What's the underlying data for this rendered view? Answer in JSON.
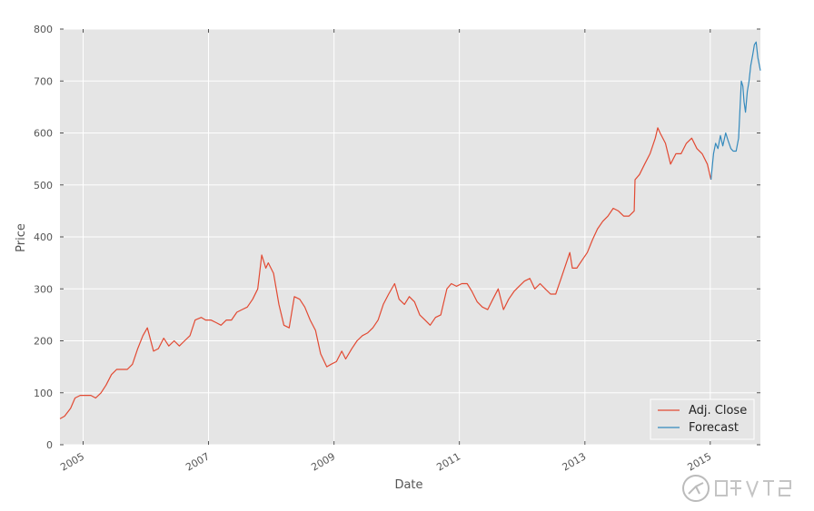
{
  "chart_data": {
    "type": "line",
    "title": "",
    "xlabel": "Date",
    "ylabel": "Price",
    "ylim": [
      0,
      800
    ],
    "xlim": [
      "2004-08-19",
      "2015-10-20"
    ],
    "yticks": [
      0,
      100,
      200,
      300,
      400,
      500,
      600,
      700,
      800
    ],
    "xticks": [
      "2005",
      "2007",
      "2009",
      "2011",
      "2013",
      "2015"
    ],
    "grid": true,
    "legend_position": "lower-right",
    "background_color": "#e5e5e5",
    "series": [
      {
        "name": "Adj. Close",
        "color": "#e24a33",
        "x": [
          "2004-08-19",
          "2004-09-15",
          "2004-10-20",
          "2004-11-15",
          "2004-12-15",
          "2005-01-15",
          "2005-02-15",
          "2005-03-15",
          "2005-04-15",
          "2005-05-15",
          "2005-06-15",
          "2005-07-15",
          "2005-08-15",
          "2005-09-15",
          "2005-10-15",
          "2005-11-15",
          "2005-12-15",
          "2006-01-10",
          "2006-02-15",
          "2006-03-15",
          "2006-04-15",
          "2006-05-15",
          "2006-06-15",
          "2006-07-15",
          "2006-08-15",
          "2006-09-15",
          "2006-10-15",
          "2006-11-20",
          "2006-12-15",
          "2007-01-15",
          "2007-02-15",
          "2007-03-15",
          "2007-04-15",
          "2007-05-15",
          "2007-06-15",
          "2007-07-15",
          "2007-08-15",
          "2007-09-15",
          "2007-10-15",
          "2007-11-07",
          "2007-12-01",
          "2007-12-15",
          "2008-01-15",
          "2008-02-15",
          "2008-03-15",
          "2008-04-15",
          "2008-05-15",
          "2008-06-15",
          "2008-07-15",
          "2008-08-15",
          "2008-09-15",
          "2008-10-15",
          "2008-11-20",
          "2008-12-15",
          "2009-01-15",
          "2009-02-15",
          "2009-03-10",
          "2009-04-15",
          "2009-05-15",
          "2009-06-15",
          "2009-07-15",
          "2009-08-15",
          "2009-09-15",
          "2009-10-15",
          "2009-11-15",
          "2009-12-20",
          "2010-01-15",
          "2010-02-15",
          "2010-03-15",
          "2010-04-15",
          "2010-05-15",
          "2010-06-15",
          "2010-07-15",
          "2010-08-15",
          "2010-09-15",
          "2010-10-20",
          "2010-11-15",
          "2010-12-15",
          "2011-01-15",
          "2011-02-15",
          "2011-03-15",
          "2011-04-15",
          "2011-05-15",
          "2011-06-15",
          "2011-07-15",
          "2011-08-15",
          "2011-09-15",
          "2011-10-15",
          "2011-11-15",
          "2011-12-15",
          "2012-01-15",
          "2012-02-15",
          "2012-03-15",
          "2012-04-15",
          "2012-05-15",
          "2012-06-15",
          "2012-07-15",
          "2012-08-15",
          "2012-09-15",
          "2012-10-05",
          "2012-10-20",
          "2012-11-15",
          "2012-12-15",
          "2013-01-15",
          "2013-02-15",
          "2013-03-15",
          "2013-04-15",
          "2013-05-15",
          "2013-06-15",
          "2013-07-15",
          "2013-08-15",
          "2013-09-15",
          "2013-10-15",
          "2013-10-20",
          "2013-11-15",
          "2013-12-15",
          "2014-01-15",
          "2014-02-15",
          "2014-03-01",
          "2014-03-15",
          "2014-04-15",
          "2014-05-15",
          "2014-06-15",
          "2014-07-15",
          "2014-08-15",
          "2014-09-15",
          "2014-10-15",
          "2014-11-15",
          "2014-12-15",
          "2015-01-05"
        ],
        "y": [
          50,
          55,
          70,
          90,
          95,
          95,
          95,
          90,
          100,
          115,
          135,
          145,
          145,
          145,
          155,
          185,
          210,
          225,
          180,
          185,
          205,
          190,
          200,
          190,
          200,
          210,
          240,
          245,
          240,
          240,
          235,
          230,
          240,
          240,
          255,
          260,
          265,
          280,
          300,
          365,
          340,
          350,
          330,
          270,
          230,
          225,
          285,
          280,
          265,
          240,
          220,
          175,
          150,
          155,
          160,
          180,
          165,
          185,
          200,
          210,
          215,
          225,
          240,
          270,
          290,
          310,
          280,
          270,
          285,
          275,
          250,
          240,
          230,
          245,
          250,
          300,
          310,
          305,
          310,
          310,
          295,
          275,
          265,
          260,
          280,
          300,
          260,
          280,
          295,
          305,
          315,
          320,
          300,
          310,
          300,
          290,
          290,
          320,
          350,
          370,
          340,
          340,
          355,
          370,
          395,
          415,
          430,
          440,
          455,
          450,
          440,
          440,
          450,
          510,
          520,
          540,
          560,
          590,
          610,
          600,
          580,
          540,
          560,
          560,
          580,
          590,
          570,
          560,
          540,
          510
        ]
      },
      {
        "name": "Forecast",
        "color": "#348abd",
        "x": [
          "2015-01-05",
          "2015-01-20",
          "2015-02-01",
          "2015-02-15",
          "2015-03-01",
          "2015-03-15",
          "2015-04-01",
          "2015-04-15",
          "2015-05-01",
          "2015-05-15",
          "2015-06-01",
          "2015-06-15",
          "2015-07-01",
          "2015-07-10",
          "2015-07-17",
          "2015-07-25",
          "2015-08-05",
          "2015-08-15",
          "2015-08-25",
          "2015-09-05",
          "2015-09-15",
          "2015-09-25",
          "2015-10-05",
          "2015-10-20"
        ],
        "y": [
          510,
          560,
          580,
          570,
          595,
          575,
          600,
          585,
          570,
          565,
          565,
          590,
          700,
          690,
          660,
          640,
          680,
          700,
          730,
          750,
          770,
          775,
          745,
          720
        ]
      }
    ]
  }
}
